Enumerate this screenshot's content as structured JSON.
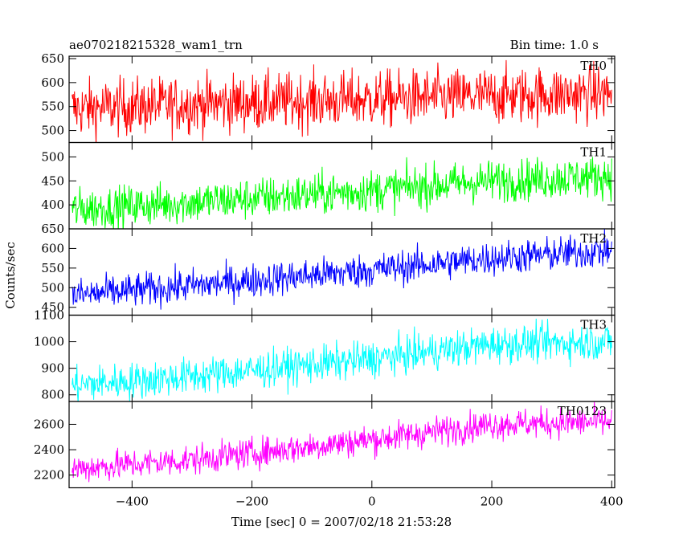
{
  "header": {
    "title": "ae070218215328_wam1_trn",
    "bin_time": "Bin time: 1.0 s"
  },
  "chart_data": {
    "type": "line",
    "title": "ae070218215328_wam1_trn",
    "xlabel": "Time [sec] 0 = 2007/02/18 21:53:28",
    "ylabel": "Counts/sec",
    "xlim": [
      -505,
      405
    ],
    "x_ticks": [
      -400,
      -200,
      0,
      200,
      400
    ],
    "x_tick_labels": [
      "−400",
      "−200",
      "0",
      "200",
      "400"
    ],
    "bin_time_s": 1.0,
    "grid": false,
    "panels": [
      {
        "name": "TH0",
        "color": "#ff0000",
        "ylim": [
          475,
          655
        ],
        "yticks": [
          500,
          550,
          600,
          650
        ],
        "trend": [
          [
            -500,
            545
          ],
          [
            -300,
            555
          ],
          [
            0,
            565
          ],
          [
            200,
            572
          ],
          [
            400,
            578
          ]
        ],
        "noise": 30
      },
      {
        "name": "TH1",
        "color": "#00ff00",
        "ylim": [
          350,
          530
        ],
        "yticks": [
          400,
          450,
          500
        ],
        "trend": [
          [
            -500,
            390
          ],
          [
            -300,
            405
          ],
          [
            0,
            430
          ],
          [
            200,
            450
          ],
          [
            400,
            460
          ]
        ],
        "noise": 22
      },
      {
        "name": "TH2",
        "color": "#0000ff",
        "ylim": [
          430,
          650
        ],
        "yticks": [
          450,
          500,
          550,
          600,
          650
        ],
        "trend": [
          [
            -500,
            480
          ],
          [
            -300,
            505
          ],
          [
            0,
            545
          ],
          [
            200,
            575
          ],
          [
            400,
            595
          ]
        ],
        "noise": 22
      },
      {
        "name": "TH3",
        "color": "#00ffff",
        "ylim": [
          775,
          1100
        ],
        "yticks": [
          800,
          900,
          1000,
          1100
        ],
        "trend": [
          [
            -500,
            835
          ],
          [
            -300,
            870
          ],
          [
            0,
            935
          ],
          [
            200,
            990
          ],
          [
            400,
            1000
          ]
        ],
        "noise": 35
      },
      {
        "name": "TH0123",
        "color": "#ff00ff",
        "ylim": [
          2100,
          2780
        ],
        "yticks": [
          2200,
          2400,
          2600
        ],
        "trend": [
          [
            -500,
            2250
          ],
          [
            -300,
            2320
          ],
          [
            0,
            2480
          ],
          [
            200,
            2600
          ],
          [
            400,
            2620
          ]
        ],
        "noise": 60
      }
    ]
  }
}
